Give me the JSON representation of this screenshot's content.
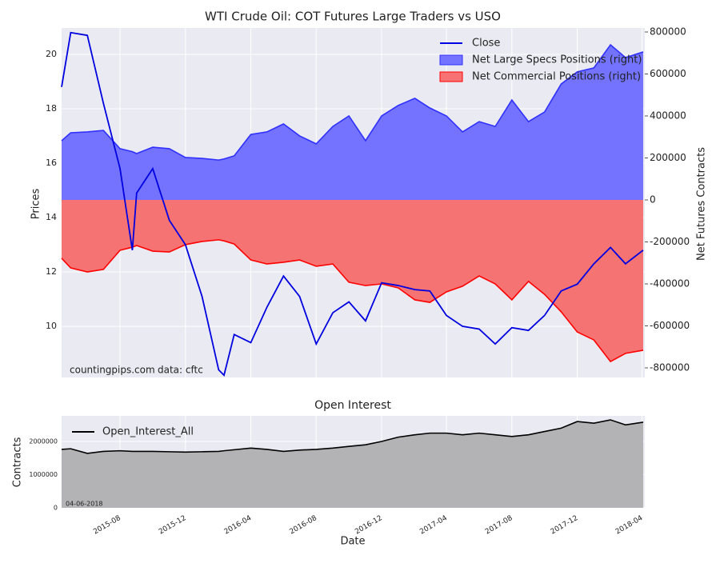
{
  "chart_data": [
    {
      "type": "line",
      "title": "WTI Crude Oil: COT Futures Large Traders vs USO",
      "ylabel": "Prices",
      "y2label": "Net Futures Contracts",
      "annotations": [
        "countingpips.com",
        "data: cftc"
      ],
      "legend": "upper right",
      "grid": true,
      "x": [
        "2015-04-14",
        "2015-05-01",
        "2015-06-01",
        "2015-07-01",
        "2015-08-01",
        "2015-08-24",
        "2015-09-01",
        "2015-10-01",
        "2015-11-01",
        "2015-12-01",
        "2016-01-01",
        "2016-02-01",
        "2016-02-11",
        "2016-03-01",
        "2016-04-01",
        "2016-05-01",
        "2016-06-01",
        "2016-07-01",
        "2016-08-01",
        "2016-09-01",
        "2016-10-01",
        "2016-11-01",
        "2016-12-01",
        "2017-01-01",
        "2017-02-01",
        "2017-03-01",
        "2017-04-01",
        "2017-05-01",
        "2017-06-01",
        "2017-07-01",
        "2017-08-01",
        "2017-09-01",
        "2017-10-01",
        "2017-11-01",
        "2017-12-01",
        "2018-01-01",
        "2018-02-01",
        "2018-03-01",
        "2018-04-03"
      ],
      "xlim": [
        "2015-04-14",
        "2018-04-06"
      ],
      "ylim": [
        8.12,
        20.97
      ],
      "yticks": [
        10,
        12,
        14,
        16,
        18,
        20
      ],
      "y2lim": [
        -845700,
        819000
      ],
      "y2ticks": [
        -800000,
        -600000,
        -400000,
        -200000,
        0,
        200000,
        400000,
        600000,
        800000
      ],
      "series": [
        {
          "name": "Close",
          "color": "#0000e0",
          "values": [
            18.8,
            20.8,
            20.7,
            18.2,
            15.8,
            12.8,
            14.9,
            15.8,
            13.9,
            13.0,
            11.1,
            8.4,
            8.2,
            9.7,
            9.4,
            10.7,
            11.85,
            11.1,
            9.35,
            10.5,
            10.9,
            10.2,
            11.6,
            11.5,
            11.35,
            11.3,
            10.4,
            10.0,
            9.9,
            9.35,
            9.95,
            9.85,
            10.4,
            11.3,
            11.55,
            12.3,
            12.9,
            12.3,
            12.8
          ]
        },
        {
          "name": "Net Large Specs Positions (right)",
          "color": "#7373ff",
          "line": "#3030ff",
          "axis": "y2",
          "kind": "area",
          "values": [
            282000,
            320000,
            324000,
            331000,
            244000,
            230000,
            221000,
            251000,
            244000,
            202000,
            198000,
            190000,
            195000,
            210000,
            312000,
            324000,
            362000,
            305000,
            267000,
            350000,
            400000,
            282000,
            400000,
            450000,
            484000,
            438000,
            400000,
            324000,
            373000,
            350000,
            476000,
            373000,
            419000,
            552000,
            610000,
            629000,
            739000,
            678000,
            705000
          ]
        },
        {
          "name": "Net Commercial Positions (right)",
          "color": "#f57373",
          "line": "#ff0000",
          "axis": "y2",
          "kind": "area",
          "values": [
            -278000,
            -324000,
            -343000,
            -331000,
            -240000,
            -225000,
            -217000,
            -244000,
            -248000,
            -213000,
            -198000,
            -190000,
            -195000,
            -210000,
            -286000,
            -305000,
            -297000,
            -286000,
            -316000,
            -305000,
            -392000,
            -408000,
            -400000,
            -419000,
            -476000,
            -488000,
            -438000,
            -411000,
            -362000,
            -400000,
            -476000,
            -388000,
            -450000,
            -533000,
            -629000,
            -667000,
            -770000,
            -731000,
            -716000
          ]
        }
      ]
    },
    {
      "type": "area",
      "title": "Open Interest",
      "ylabel": "Contracts",
      "xlabel": "Date",
      "annotation": "04-06-2018",
      "legend": "upper left",
      "grid": true,
      "xlim": [
        "2015-04-14",
        "2018-04-06"
      ],
      "xticks": [
        "2015-08",
        "2015-12",
        "2016-04",
        "2016-08",
        "2016-12",
        "2017-04",
        "2017-08",
        "2017-12",
        "2018-04"
      ],
      "ylim": [
        0,
        2771000
      ],
      "yticks": [
        0,
        1000000,
        2000000
      ],
      "series": [
        {
          "name": "Open_Interest_All",
          "color": "#b3b3b6",
          "line": "#000000",
          "values": [
            1760000,
            1780000,
            1640000,
            1700000,
            1720000,
            1700000,
            1700000,
            1700000,
            1690000,
            1680000,
            1690000,
            1700000,
            1720000,
            1750000,
            1800000,
            1760000,
            1700000,
            1740000,
            1760000,
            1800000,
            1850000,
            1900000,
            2000000,
            2130000,
            2200000,
            2250000,
            2250000,
            2200000,
            2250000,
            2200000,
            2150000,
            2200000,
            2300000,
            2400000,
            2600000,
            2550000,
            2650000,
            2500000,
            2580000
          ]
        }
      ]
    }
  ]
}
